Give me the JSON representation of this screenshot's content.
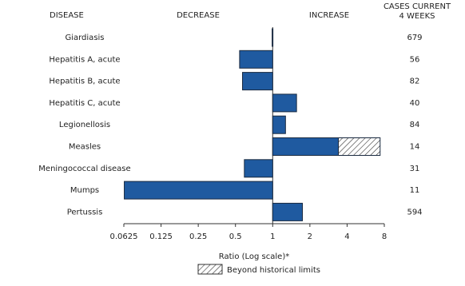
{
  "chart_data": {
    "type": "bar",
    "orientation": "horizontal",
    "log_scale": true,
    "headers": {
      "disease": "DISEASE",
      "decrease": "DECREASE",
      "increase": "INCREASE",
      "cases": [
        "CASES CURRENT",
        "4 WEEKS"
      ]
    },
    "categories": [
      "Giardiasis",
      "Hepatitis A, acute",
      "Hepatitis B, acute",
      "Hepatitis C, acute",
      "Legionellosis",
      "Measles",
      "Meningococcal disease",
      "Mumps",
      "Pertussis"
    ],
    "values": [
      0.99,
      0.54,
      0.57,
      1.56,
      1.27,
      7.4,
      0.59,
      0.063,
      1.74
    ],
    "historical_limits": [
      null,
      null,
      null,
      null,
      null,
      3.4,
      null,
      null,
      null
    ],
    "cases": [
      679,
      56,
      82,
      40,
      84,
      14,
      31,
      11,
      594
    ],
    "color": "#1f5aa0",
    "xlim": [
      0.0625,
      8
    ],
    "xticks": [
      0.0625,
      0.125,
      0.25,
      0.5,
      1,
      2,
      4,
      8
    ],
    "xlabel": "Ratio (Log scale)*",
    "legend": "Beyond historical limits"
  }
}
